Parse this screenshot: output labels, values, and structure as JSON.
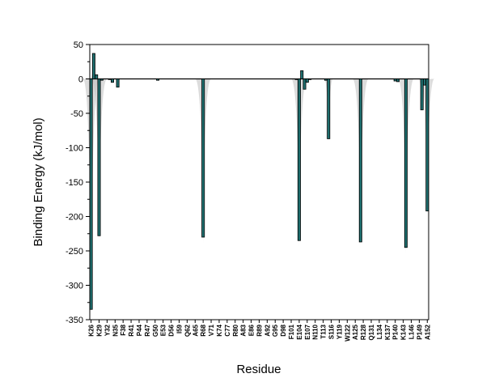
{
  "chart_data": {
    "type": "bar",
    "xlabel": "Residue",
    "ylabel": "Binding Energy (kJ/mol)",
    "ylim": [
      -350,
      50
    ],
    "yticks": [
      50,
      0,
      -50,
      -100,
      -150,
      -200,
      -250,
      -300,
      -350
    ],
    "legend": "none",
    "grid": false,
    "colors": {
      "bar_fill": "#1f6f6f",
      "bar_edge": "#000000",
      "error_band": "#c0c0c0",
      "axis": "#000000"
    },
    "x_tick_labels": [
      "K26",
      "K29",
      "Y32",
      "N35",
      "F38",
      "R41",
      "P44",
      "R47",
      "G50",
      "E53",
      "D56",
      "I59",
      "Q62",
      "A65",
      "R68",
      "V71",
      "K74",
      "C77",
      "R80",
      "A83",
      "E86",
      "R89",
      "A92",
      "G95",
      "D98",
      "F101",
      "E104",
      "E107",
      "N110",
      "T113",
      "S116",
      "Y119",
      "W122",
      "A125",
      "R128",
      "Q131",
      "L134",
      "K137",
      "P140",
      "K143",
      "L146",
      "P149",
      "A152"
    ],
    "x_range": [
      26,
      153
    ],
    "bars": [
      {
        "residue": 26,
        "value": -335
      },
      {
        "residue": 27,
        "value": 37
      },
      {
        "residue": 28,
        "value": 6
      },
      {
        "residue": 29,
        "value": -228
      },
      {
        "residue": 30,
        "value": -2
      },
      {
        "residue": 33,
        "value": -1
      },
      {
        "residue": 34,
        "value": -5
      },
      {
        "residue": 36,
        "value": -12
      },
      {
        "residue": 51,
        "value": -2
      },
      {
        "residue": 68,
        "value": -230
      },
      {
        "residue": 103,
        "value": -1
      },
      {
        "residue": 104,
        "value": -235
      },
      {
        "residue": 105,
        "value": 12
      },
      {
        "residue": 106,
        "value": -15
      },
      {
        "residue": 107,
        "value": -5
      },
      {
        "residue": 108,
        "value": -1
      },
      {
        "residue": 114,
        "value": -2
      },
      {
        "residue": 115,
        "value": -87
      },
      {
        "residue": 127,
        "value": -237
      },
      {
        "residue": 140,
        "value": -3
      },
      {
        "residue": 141,
        "value": -4
      },
      {
        "residue": 144,
        "value": -245
      },
      {
        "residue": 150,
        "value": -45
      },
      {
        "residue": 151,
        "value": -9
      },
      {
        "residue": 152,
        "value": -192
      }
    ]
  }
}
